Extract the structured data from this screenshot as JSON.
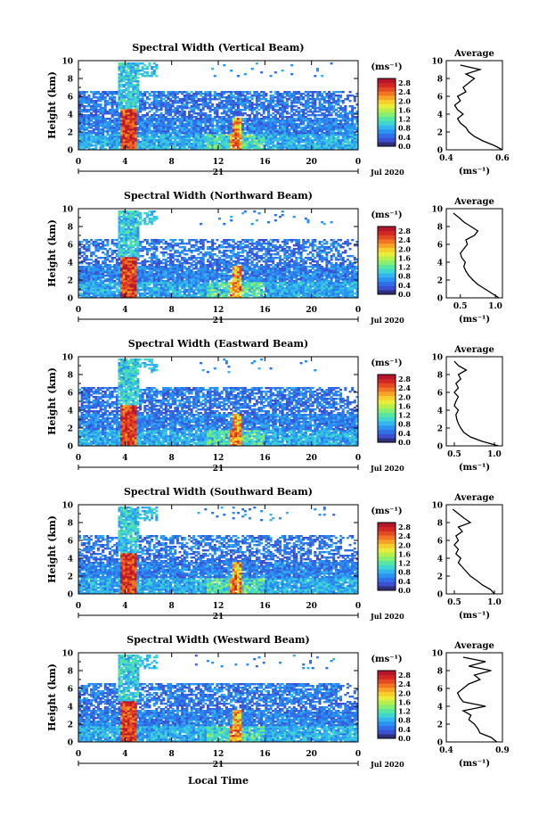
{
  "figure": {
    "xlabel_bottom": "Local Time",
    "day_label": "21",
    "date_label": "Jul 2020",
    "unit_label": "(ms⁻¹)",
    "ylabel": "Height (km)",
    "avg_title": "Average",
    "colormap": [
      "#2f2f7a",
      "#3b4fd0",
      "#2f6fe8",
      "#2a93f0",
      "#33b6ef",
      "#3fd6d0",
      "#57e6a0",
      "#86ee70",
      "#b7f04c",
      "#e6ee3a",
      "#f7cf2d",
      "#f8a326",
      "#f27424",
      "#e44a22",
      "#d22624",
      "#b4162a"
    ]
  },
  "chart_data": [
    {
      "type": "heatmap",
      "title": "Spectral Width (Vertical Beam)",
      "xlabel": "Local Time",
      "ylabel": "Height (km)",
      "xlim": [
        0,
        24
      ],
      "ylim": [
        0,
        10
      ],
      "xticks": [
        "0",
        "4",
        "8",
        "12",
        "16",
        "20",
        "0"
      ],
      "yticks": [
        "0",
        "2",
        "4",
        "6",
        "8",
        "10"
      ],
      "colorbar": {
        "label": "(ms⁻¹)",
        "range": [
          0,
          3.0
        ],
        "ticks": [
          "0.0",
          "0.4",
          "0.8",
          "1.2",
          "1.6",
          "2.0",
          "2.4",
          "2.8"
        ]
      },
      "profile": {
        "title": "Average",
        "xlabel": "(ms⁻¹)",
        "xlim": [
          0.4,
          0.6
        ],
        "xticks": [
          "0.4",
          "0.6"
        ],
        "ylim": [
          0,
          10
        ],
        "heights": [
          0,
          0.5,
          1,
          1.5,
          2,
          2.5,
          3,
          3.5,
          4,
          4.5,
          5,
          5.5,
          6,
          6.5,
          7,
          7.5,
          8,
          8.5,
          9,
          9.5
        ],
        "values": [
          0.6,
          0.57,
          0.53,
          0.5,
          0.48,
          0.47,
          0.45,
          0.44,
          0.46,
          0.44,
          0.43,
          0.45,
          0.44,
          0.47,
          0.46,
          0.48,
          0.5,
          0.47,
          0.52,
          0.45
        ]
      }
    },
    {
      "type": "heatmap",
      "title": "Spectral Width (Northward Beam)",
      "xlabel": "Local Time",
      "ylabel": "Height (km)",
      "xlim": [
        0,
        24
      ],
      "ylim": [
        0,
        10
      ],
      "xticks": [
        "0",
        "4",
        "8",
        "12",
        "16",
        "20",
        "0"
      ],
      "yticks": [
        "0",
        "2",
        "4",
        "6",
        "8",
        "10"
      ],
      "colorbar": {
        "label": "(ms⁻¹)",
        "range": [
          0,
          3.0
        ],
        "ticks": [
          "0.0",
          "0.4",
          "0.8",
          "1.2",
          "1.6",
          "2.0",
          "2.4",
          "2.8"
        ]
      },
      "profile": {
        "title": "Average",
        "xlabel": "(ms⁻¹)",
        "xlim": [
          0.3,
          1.1
        ],
        "xticks": [
          "0.5",
          "1.0"
        ],
        "ylim": [
          0,
          10
        ],
        "heights": [
          0,
          0.5,
          1,
          1.5,
          2,
          2.5,
          3,
          3.5,
          4,
          4.5,
          5,
          5.5,
          6,
          6.5,
          7,
          7.5,
          8,
          8.5,
          9,
          9.5
        ],
        "values": [
          1.05,
          0.95,
          0.85,
          0.75,
          0.68,
          0.62,
          0.58,
          0.55,
          0.57,
          0.52,
          0.5,
          0.55,
          0.6,
          0.58,
          0.7,
          0.75,
          0.65,
          0.55,
          0.48,
          0.4
        ]
      }
    },
    {
      "type": "heatmap",
      "title": "Spectral Width (Eastward Beam)",
      "xlabel": "Local Time",
      "ylabel": "Height (km)",
      "xlim": [
        0,
        24
      ],
      "ylim": [
        0,
        10
      ],
      "xticks": [
        "0",
        "4",
        "8",
        "12",
        "16",
        "20",
        "0"
      ],
      "yticks": [
        "0",
        "2",
        "4",
        "6",
        "8",
        "10"
      ],
      "colorbar": {
        "label": "(ms⁻¹)",
        "range": [
          0,
          3.0
        ],
        "ticks": [
          "0.0",
          "0.4",
          "0.8",
          "1.2",
          "1.6",
          "2.0",
          "2.4",
          "2.8"
        ]
      },
      "profile": {
        "title": "Average",
        "xlabel": "(ms⁻¹)",
        "xlim": [
          0.4,
          1.1
        ],
        "xticks": [
          "0.5",
          "1.0"
        ],
        "ylim": [
          0,
          10
        ],
        "heights": [
          0,
          0.5,
          1,
          1.5,
          2,
          2.5,
          3,
          3.5,
          4,
          4.5,
          5,
          5.5,
          6,
          6.5,
          7,
          7.5,
          8,
          8.5,
          9,
          9.5
        ],
        "values": [
          1.05,
          0.85,
          0.7,
          0.62,
          0.58,
          0.55,
          0.53,
          0.52,
          0.55,
          0.5,
          0.52,
          0.55,
          0.5,
          0.55,
          0.52,
          0.58,
          0.55,
          0.65,
          0.55,
          0.5
        ]
      }
    },
    {
      "type": "heatmap",
      "title": "Spectral Width (Southward Beam)",
      "xlabel": "Local Time",
      "ylabel": "Height (km)",
      "xlim": [
        0,
        24
      ],
      "ylim": [
        0,
        10
      ],
      "xticks": [
        "0",
        "4",
        "8",
        "12",
        "16",
        "20",
        "0"
      ],
      "yticks": [
        "0",
        "2",
        "4",
        "6",
        "8",
        "10"
      ],
      "colorbar": {
        "label": "(ms⁻¹)",
        "range": [
          0,
          3.0
        ],
        "ticks": [
          "0.0",
          "0.4",
          "0.8",
          "1.2",
          "1.6",
          "2.0",
          "2.4",
          "2.8"
        ]
      },
      "profile": {
        "title": "Average",
        "xlabel": "(ms⁻¹)",
        "xlim": [
          0.4,
          1.1
        ],
        "xticks": [
          "0.5",
          "1.0"
        ],
        "ylim": [
          0,
          10
        ],
        "heights": [
          0,
          0.5,
          1,
          1.5,
          2,
          2.5,
          3,
          3.5,
          4,
          4.5,
          5,
          5.5,
          6,
          6.5,
          7,
          7.5,
          8,
          8.5,
          9,
          9.5
        ],
        "values": [
          1.0,
          0.95,
          0.85,
          0.78,
          0.7,
          0.65,
          0.6,
          0.55,
          0.58,
          0.52,
          0.55,
          0.5,
          0.55,
          0.52,
          0.6,
          0.55,
          0.7,
          0.62,
          0.55,
          0.48
        ]
      }
    },
    {
      "type": "heatmap",
      "title": "Spectral Width (Westward Beam)",
      "xlabel": "Local Time",
      "ylabel": "Height (km)",
      "xlim": [
        0,
        24
      ],
      "ylim": [
        0,
        10
      ],
      "xticks": [
        "0",
        "4",
        "8",
        "12",
        "16",
        "20",
        "0"
      ],
      "yticks": [
        "0",
        "2",
        "4",
        "6",
        "8",
        "10"
      ],
      "colorbar": {
        "label": "(ms⁻¹)",
        "range": [
          0,
          3.0
        ],
        "ticks": [
          "0.0",
          "0.4",
          "0.8",
          "1.2",
          "1.6",
          "2.0",
          "2.4",
          "2.8"
        ]
      },
      "profile": {
        "title": "Average",
        "xlabel": "(ms⁻¹)",
        "xlim": [
          0.4,
          0.9
        ],
        "xticks": [
          "0.4",
          "0.9"
        ],
        "ylim": [
          0,
          10
        ],
        "heights": [
          0,
          0.5,
          1,
          1.5,
          2,
          2.5,
          3,
          3.5,
          4,
          4.5,
          5,
          5.5,
          6,
          6.5,
          7,
          7.5,
          8,
          8.5,
          9,
          9.5
        ],
        "values": [
          0.85,
          0.8,
          0.7,
          0.68,
          0.65,
          0.6,
          0.62,
          0.55,
          0.75,
          0.55,
          0.52,
          0.5,
          0.55,
          0.6,
          0.7,
          0.65,
          0.8,
          0.6,
          0.75,
          0.55
        ]
      }
    }
  ]
}
